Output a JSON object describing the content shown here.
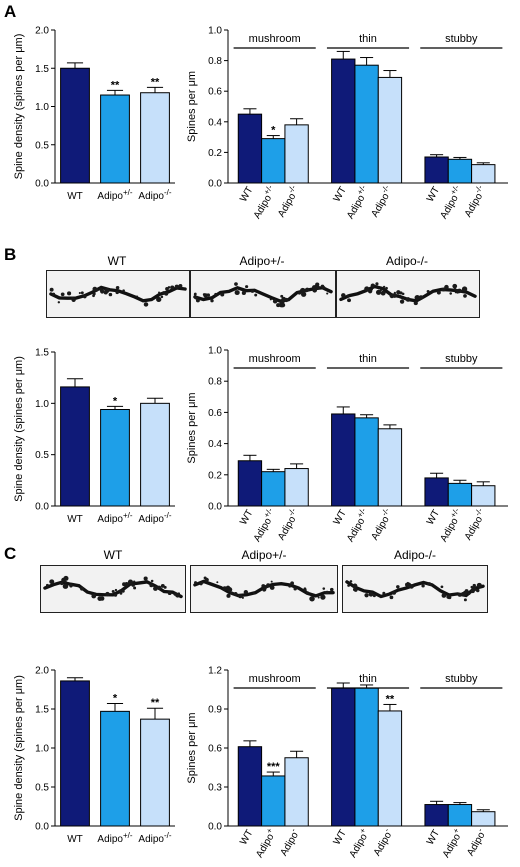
{
  "colors": {
    "wt": "#0f1a78",
    "het": "#1e9fe8",
    "ko": "#c6e0fa",
    "axis": "#000000"
  },
  "panels": [
    {
      "label": "A"
    },
    {
      "label": "B",
      "micro": [
        "WT",
        "Adipo+/-",
        "Adipo-/-"
      ]
    },
    {
      "label": "C",
      "micro": [
        "WT",
        "Adipo+/-",
        "Adipo-/-"
      ]
    }
  ],
  "chart_data": [
    {
      "id": "A-density",
      "type": "bar",
      "categories": [
        "WT",
        "Adipo+/-",
        "Adipo-/-"
      ],
      "values": [
        1.5,
        1.15,
        1.18
      ],
      "errors": [
        0.07,
        0.06,
        0.07
      ],
      "significance": [
        "",
        "**",
        "**"
      ],
      "ylabel": "Spine density (spines per μm)",
      "ylim": [
        0,
        2.0
      ],
      "yticks": [
        "0.0",
        "0.5",
        "1.0",
        "1.5",
        "2.0"
      ]
    },
    {
      "id": "A-types",
      "type": "bar",
      "groups": [
        "mushroom",
        "thin",
        "stubby"
      ],
      "categories": [
        "WT",
        "Adipo+/-",
        "Adipo-/-"
      ],
      "series": [
        {
          "values": [
            0.45,
            0.29,
            0.38
          ],
          "errors": [
            0.035,
            0.02,
            0.04
          ],
          "significance": [
            "",
            "*",
            ""
          ]
        },
        {
          "values": [
            0.81,
            0.77,
            0.69
          ],
          "errors": [
            0.05,
            0.05,
            0.045
          ],
          "significance": [
            "",
            "",
            ""
          ]
        },
        {
          "values": [
            0.17,
            0.155,
            0.12
          ],
          "errors": [
            0.015,
            0.012,
            0.012
          ],
          "significance": [
            "",
            "",
            ""
          ]
        }
      ],
      "ylabel": "Spines per μm",
      "ylim": [
        0,
        1.0
      ],
      "yticks": [
        "0.0",
        "0.2",
        "0.4",
        "0.6",
        "0.8",
        "1.0"
      ]
    },
    {
      "id": "B-density",
      "type": "bar",
      "categories": [
        "WT",
        "Adipo+/-",
        "Adipo-/-"
      ],
      "values": [
        1.16,
        0.94,
        1.0
      ],
      "errors": [
        0.08,
        0.03,
        0.05
      ],
      "significance": [
        "",
        "*",
        ""
      ],
      "ylabel": "Spine density (spines per μm)",
      "ylim": [
        0,
        1.5
      ],
      "yticks": [
        "0.0",
        "0.5",
        "1.0",
        "1.5"
      ]
    },
    {
      "id": "B-types",
      "type": "bar",
      "groups": [
        "mushroom",
        "thin",
        "stubby"
      ],
      "categories": [
        "WT",
        "Adipo+/-",
        "Adipo-/-"
      ],
      "series": [
        {
          "values": [
            0.29,
            0.22,
            0.24
          ],
          "errors": [
            0.035,
            0.015,
            0.03
          ],
          "significance": [
            "",
            "",
            ""
          ]
        },
        {
          "values": [
            0.59,
            0.565,
            0.495
          ],
          "errors": [
            0.045,
            0.02,
            0.025
          ],
          "significance": [
            "",
            "",
            ""
          ]
        },
        {
          "values": [
            0.18,
            0.145,
            0.13
          ],
          "errors": [
            0.03,
            0.02,
            0.025
          ],
          "significance": [
            "",
            "",
            ""
          ]
        }
      ],
      "ylabel": "Spines per μm",
      "ylim": [
        0,
        1.0
      ],
      "yticks": [
        "0.0",
        "0.2",
        "0.4",
        "0.6",
        "0.8",
        "1.0"
      ]
    },
    {
      "id": "C-density",
      "type": "bar",
      "categories": [
        "WT",
        "Adipo+/-",
        "Adipo-/-"
      ],
      "values": [
        1.86,
        1.47,
        1.37
      ],
      "errors": [
        0.04,
        0.1,
        0.14
      ],
      "significance": [
        "",
        "*",
        "**"
      ],
      "ylabel": "Spine density (spines per μm)",
      "ylim": [
        0,
        2.0
      ],
      "yticks": [
        "0.0",
        "0.5",
        "1.0",
        "1.5",
        "2.0"
      ]
    },
    {
      "id": "C-types",
      "type": "bar",
      "groups": [
        "mushroom",
        "thin",
        "stubby"
      ],
      "categories": [
        "WT",
        "Adipo+",
        "Adipo-"
      ],
      "series": [
        {
          "values": [
            0.61,
            0.385,
            0.525
          ],
          "errors": [
            0.045,
            0.03,
            0.05
          ],
          "significance": [
            "",
            "***",
            ""
          ]
        },
        {
          "values": [
            1.06,
            1.06,
            0.885
          ],
          "errors": [
            0.04,
            0.025,
            0.05
          ],
          "significance": [
            "",
            "",
            "**"
          ]
        },
        {
          "values": [
            0.165,
            0.165,
            0.11
          ],
          "errors": [
            0.025,
            0.015,
            0.015
          ],
          "significance": [
            "",
            "",
            ""
          ]
        }
      ],
      "ylabel": "Spines per μm",
      "ylim": [
        0,
        1.2
      ],
      "yticks": [
        "0.0",
        "0.3",
        "0.6",
        "0.9",
        "1.2"
      ]
    }
  ]
}
